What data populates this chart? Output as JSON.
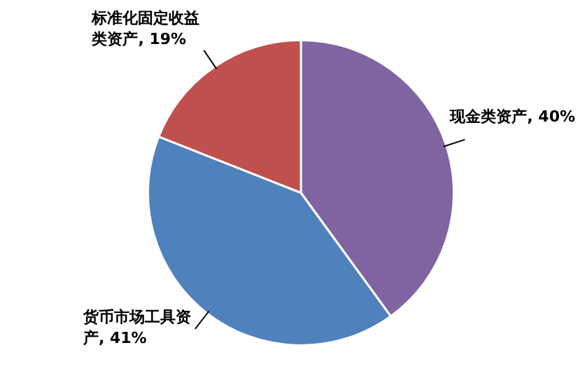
{
  "chart_data": {
    "type": "pie",
    "categories": [
      "现金类资产",
      "货币市场工具资产",
      "标准化固定收益类资产"
    ],
    "values": [
      40,
      41,
      19
    ],
    "colors": [
      "#8064a2",
      "#4f81bd",
      "#c0504d"
    ],
    "value_labels": [
      "40%",
      "41%",
      "19%"
    ],
    "legend": false
  }
}
